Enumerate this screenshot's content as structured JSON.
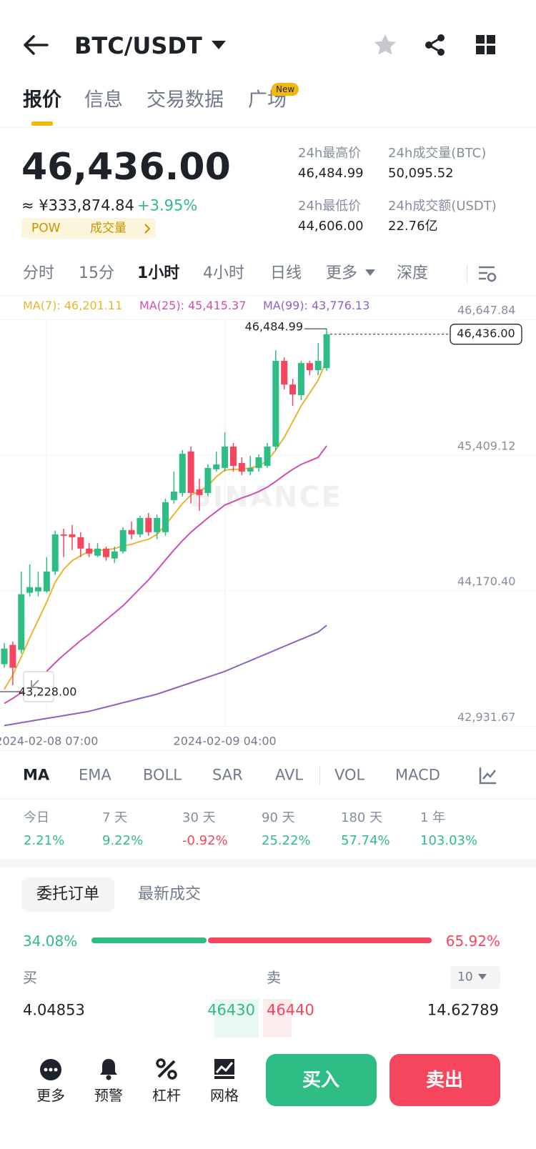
{
  "header": {
    "title": "BTC/USDT"
  },
  "tabs": {
    "items": [
      "报价",
      "信息",
      "交易数据",
      "广场"
    ],
    "badge": "New"
  },
  "ticker": {
    "last": "46,436.00",
    "fiat": "≈ ¥333,874.84",
    "change": "+3.95%",
    "tags": [
      "POW",
      "成交量"
    ]
  },
  "stats": [
    {
      "label": "24h最高价",
      "value": "46,484.99"
    },
    {
      "label": "24h成交量(BTC)",
      "value": "50,095.52"
    },
    {
      "label": "24h最低价",
      "value": "44,606.00"
    },
    {
      "label": "24h成交额(USDT)",
      "value": "22.76亿"
    }
  ],
  "intervals": [
    "分时",
    "15分",
    "1小时",
    "4小时",
    "日线",
    "更多",
    "深度"
  ],
  "chart_data": {
    "type": "candlestick",
    "categories": [
      null,
      null,
      null,
      null,
      null,
      "2024-02-08 07:00",
      null,
      null,
      null,
      null,
      null,
      null,
      null,
      null,
      null,
      null,
      null,
      null,
      null,
      null,
      null,
      null,
      null,
      null,
      null,
      null,
      "2024-02-09 04:00",
      null,
      null,
      null,
      null,
      null,
      null,
      null,
      null,
      null,
      null,
      null,
      null
    ],
    "open": [
      43421,
      43597,
      43551,
      44073,
      44086,
      44086,
      44268,
      44607,
      44607,
      44581,
      44477,
      44412,
      44477,
      44386,
      44451,
      44646,
      44607,
      44757,
      44627,
      44627,
      44920,
      44985,
      45364,
      45018,
      44985,
      45201,
      45214,
      45409,
      45259,
      45181,
      45214,
      45233,
      45409,
      46192,
      45976,
      45879,
      46172,
      46107,
      46126
    ],
    "high": [
      43616,
      43629,
      44268,
      44333,
      44268,
      44399,
      44640,
      44659,
      44692,
      44627,
      44529,
      44529,
      44496,
      44496,
      44672,
      44725,
      44777,
      44803,
      44790,
      44933,
      45181,
      45377,
      45409,
      45116,
      45246,
      45364,
      45540,
      45442,
      45311,
      45324,
      45337,
      45442,
      46289,
      46224,
      46029,
      46192,
      46192,
      46355,
      46484.99
    ],
    "low": [
      43388,
      43228,
      43518,
      44040,
      44040,
      44073,
      44236,
      44399,
      44464,
      44399,
      44399,
      44399,
      44366,
      44346,
      44431,
      44562,
      44581,
      44594,
      44562,
      44594,
      44888,
      44953,
      44888,
      44822,
      44953,
      45181,
      45181,
      45181,
      45148,
      45148,
      45181,
      45214,
      45377,
      45931,
      45781,
      45833,
      46061,
      46061,
      46100
    ],
    "close": [
      43564,
      43388,
      44060,
      44125,
      44125,
      44268,
      44607,
      44594,
      44581,
      44477,
      44431,
      44477,
      44399,
      44451,
      44646,
      44607,
      44757,
      44627,
      44757,
      44901,
      44998,
      45344,
      44985,
      44966,
      45214,
      45246,
      45409,
      45233,
      45181,
      45214,
      45311,
      45409,
      46192,
      45976,
      45885,
      46172,
      46107,
      46192,
      46436
    ],
    "up_color": "#2ebd85",
    "down_color": "#f6465d",
    "series": [
      {
        "name": "MA(7)",
        "color": "#e9b52f",
        "value_label": "46,201.11",
        "values": [
          43192,
          43323,
          43486,
          43662,
          43825,
          43988,
          44170,
          44288,
          44366,
          44412,
          44451,
          44464,
          44464,
          44477,
          44503,
          44516,
          44542,
          44562,
          44607,
          44692,
          44790,
          44888,
          44966,
          44998,
          45051,
          45135,
          45194,
          45201,
          45201,
          45214,
          45233,
          45279,
          45377,
          45494,
          45637,
          45781,
          45898,
          46016,
          46201.11
        ]
      },
      {
        "name": "MA(25)",
        "color": "#d14fae",
        "value_label": "45,415.37",
        "values": [
          43062,
          43108,
          43160,
          43225,
          43290,
          43355,
          43434,
          43505,
          43571,
          43636,
          43694,
          43760,
          43825,
          43890,
          43955,
          44033,
          44112,
          44190,
          44281,
          44373,
          44464,
          44549,
          44627,
          44692,
          44757,
          44816,
          44875,
          44907,
          44940,
          44966,
          44998,
          45038,
          45090,
          45148,
          45201,
          45246,
          45279,
          45311,
          45415.37
        ]
      },
      {
        "name": "MA(99)",
        "color": "#8d62c8",
        "value_label": "43,776.13",
        "values": [
          42860,
          42873,
          42886,
          42899,
          42912,
          42925,
          42938,
          42951,
          42964,
          42977,
          42990,
          43010,
          43029,
          43049,
          43069,
          43088,
          43108,
          43127,
          43147,
          43173,
          43199,
          43225,
          43251,
          43277,
          43303,
          43329,
          43355,
          43388,
          43421,
          43453,
          43486,
          43518,
          43551,
          43584,
          43616,
          43649,
          43681,
          43714,
          43776.13
        ]
      }
    ],
    "ylim": [
      42830,
      46780
    ],
    "yticks": [
      {
        "value": 46647.84,
        "label": "46,647.84"
      },
      {
        "value": 45409.12,
        "label": "45,409.12"
      },
      {
        "value": 44170.4,
        "label": "44,170.40"
      },
      {
        "value": 42931.67,
        "label": "42,931.67"
      }
    ],
    "grid": true,
    "annotations": {
      "high": {
        "value": 46484.99,
        "label": "46,484.99"
      },
      "low": {
        "value": 43228,
        "label": "43,228.00"
      },
      "last": {
        "value": 46436,
        "label": "46,436.00"
      }
    },
    "watermark": "BINANCE"
  },
  "indicators": [
    "MA",
    "EMA",
    "BOLL",
    "SAR",
    "AVL",
    "VOL",
    "MACD"
  ],
  "performance": [
    {
      "label": "今日",
      "value": "2.21%"
    },
    {
      "label": "7 天",
      "value": "9.22%"
    },
    {
      "label": "30 天",
      "value": "-0.92%"
    },
    {
      "label": "90 天",
      "value": "25.22%"
    },
    {
      "label": "180 天",
      "value": "57.74%"
    },
    {
      "label": "1 年",
      "value": "103.03%"
    }
  ],
  "orderbook": {
    "tabs": [
      "委托订单",
      "最新成交"
    ],
    "ratio": {
      "buy": 34.08,
      "sell": 65.92,
      "buy_label": "34.08%",
      "sell_label": "65.92%"
    },
    "bid_header": "买",
    "ask_header": "卖",
    "depth": "10",
    "rows": [
      {
        "bid_qty": "4.04853",
        "bid": "46430",
        "ask": "46440",
        "ask_qty": "14.62789"
      }
    ]
  },
  "nav": {
    "items": [
      "更多",
      "预警",
      "杠杆",
      "网格"
    ],
    "buy": "买入",
    "sell": "卖出"
  }
}
